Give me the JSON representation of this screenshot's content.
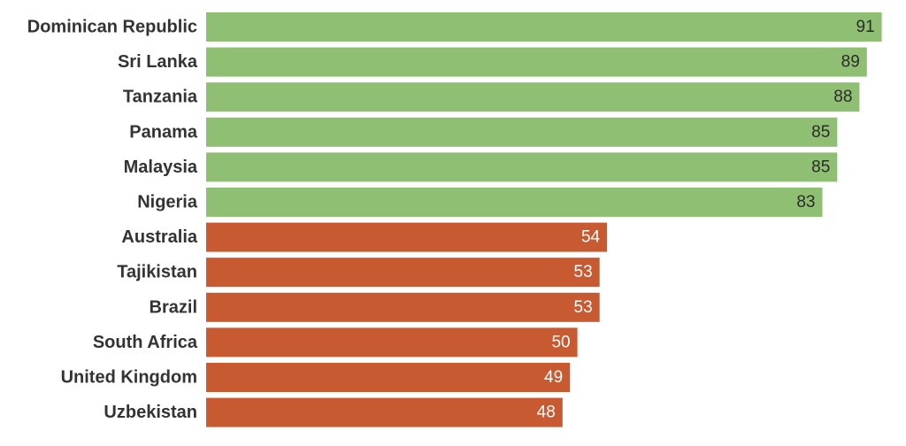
{
  "chart_data": {
    "type": "bar",
    "orientation": "horizontal",
    "title": "",
    "xlabel": "",
    "ylabel": "",
    "grid": false,
    "xlim": [
      0,
      92
    ],
    "categories": [
      "Dominican Republic",
      "Sri Lanka",
      "Tanzania",
      "Panama",
      "Malaysia",
      "Nigeria",
      "Australia",
      "Tajikistan",
      "Brazil",
      "South Africa",
      "United Kingdom",
      "Uzbekistan"
    ],
    "values": [
      91,
      89,
      88,
      85,
      85,
      83,
      54,
      53,
      53,
      50,
      49,
      48
    ],
    "value_labels": [
      "91",
      "89",
      "88",
      "85",
      "85",
      "83",
      "54",
      "53",
      "53",
      "50",
      "49",
      "48"
    ],
    "bar_colors": [
      "#8fbf72",
      "#8fbf72",
      "#8fbf72",
      "#8fbf72",
      "#8fbf72",
      "#8fbf72",
      "#c85a32",
      "#c85a32",
      "#c85a32",
      "#c85a32",
      "#c85a32",
      "#c85a32"
    ],
    "value_label_colors": [
      "#2b2b2b",
      "#2b2b2b",
      "#2b2b2b",
      "#2b2b2b",
      "#2b2b2b",
      "#2b2b2b",
      "#ffffff",
      "#ffffff",
      "#ffffff",
      "#ffffff",
      "#ffffff",
      "#ffffff"
    ]
  }
}
